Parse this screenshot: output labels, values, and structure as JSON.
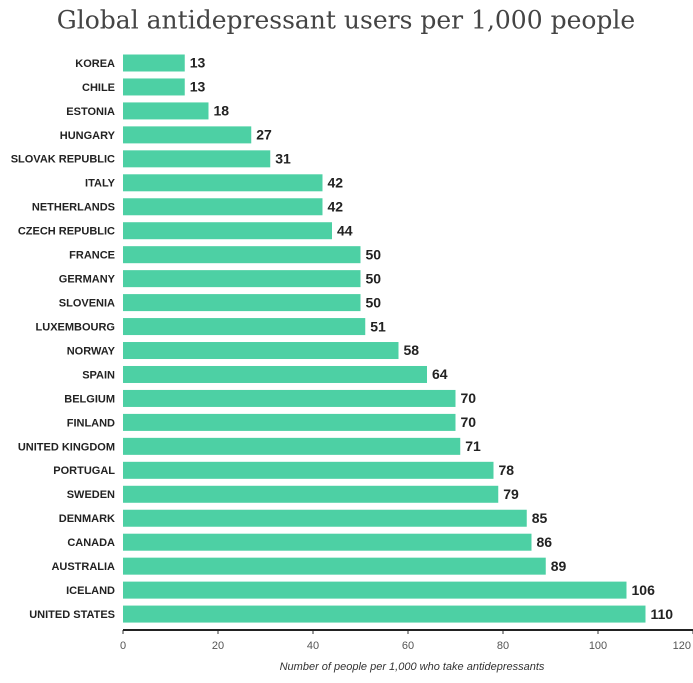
{
  "chart_data": {
    "type": "barh",
    "title": "Global antidepressant users per 1,000 people",
    "categories": [
      "KOREA",
      "CHILE",
      "ESTONIA",
      "HUNGARY",
      "SLOVAK REPUBLIC",
      "ITALY",
      "NETHERLANDS",
      "CZECH REPUBLIC",
      "FRANCE",
      "GERMANY",
      "SLOVENIA",
      "LUXEMBOURG",
      "NORWAY",
      "SPAIN",
      "BELGIUM",
      "FINLAND",
      "UNITED KINGDOM",
      "PORTUGAL",
      "SWEDEN",
      "DENMARK",
      "CANADA",
      "AUSTRALIA",
      "ICELAND",
      "UNITED STATES"
    ],
    "values": [
      13,
      13,
      18,
      27,
      31,
      42,
      42,
      44,
      50,
      50,
      50,
      51,
      58,
      64,
      70,
      70,
      71,
      78,
      79,
      85,
      86,
      89,
      106,
      110
    ],
    "color": "#4dd0a4",
    "xlim": [
      0,
      120
    ],
    "xticks": [
      0,
      20,
      40,
      60,
      80,
      100,
      120
    ],
    "xlabel": "Number of people per 1,000 who take antidepressants",
    "grid": false
  }
}
